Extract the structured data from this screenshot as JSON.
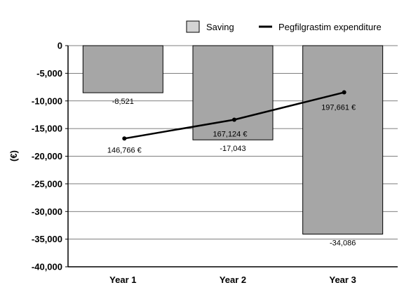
{
  "chart_data": {
    "type": "bar",
    "categories": [
      "Year 1",
      "Year 2",
      "Year 3"
    ],
    "ylabel": "(€)",
    "ylim": [
      -40000,
      0
    ],
    "yticks": [
      0,
      -5000,
      -10000,
      -15000,
      -20000,
      -25000,
      -30000,
      -35000,
      -40000
    ],
    "ytick_labels": [
      "0",
      "-5,000",
      "-10,000",
      "-15,000",
      "-20,000",
      "-25,000",
      "-30,000",
      "-35,000",
      "-40,000"
    ],
    "grid": true,
    "legend_position": "top-right",
    "series": [
      {
        "name": "Saving",
        "type": "bar",
        "color": "#a6a6a6",
        "values": [
          -8521,
          -17043,
          -34086
        ],
        "labels": [
          "-8,521",
          "-17,043",
          "-34,086"
        ]
      },
      {
        "name": "Pegfilgrastim expenditure",
        "type": "line",
        "color": "#000000",
        "values": [
          146766,
          167124,
          197661
        ],
        "labels": [
          "146,766 €",
          "167,124 €",
          "197,661 €"
        ],
        "plotted_positions": [
          -16800,
          -13400,
          -8450
        ]
      }
    ]
  }
}
